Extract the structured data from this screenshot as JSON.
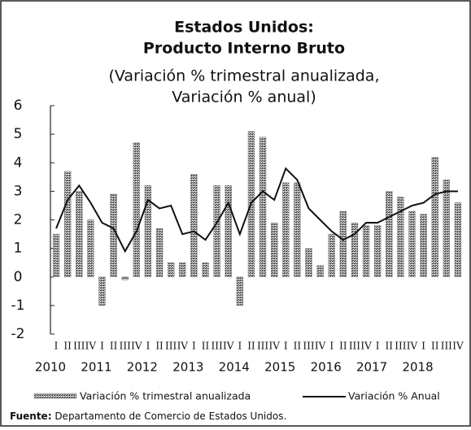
{
  "chart_data": {
    "type": "bar_line",
    "title_lines": [
      "Estados Unidos:",
      "Producto Interno Bruto",
      "(Variación % trimestral anualizada,",
      "Variación % anual)"
    ],
    "categories": [
      "I",
      "II",
      "III",
      "IV",
      "I",
      "II",
      "III",
      "IV",
      "I",
      "II",
      "III",
      "IV",
      "I",
      "II",
      "III",
      "IV",
      "I",
      "II",
      "III",
      "IV",
      "I",
      "II",
      "III",
      "IV",
      "I",
      "II",
      "III",
      "IV",
      "I",
      "II",
      "III",
      "IV",
      "I",
      "II",
      "III",
      "IV"
    ],
    "year_labels": [
      "2010",
      "2011",
      "2012",
      "2013",
      "2014",
      "2015",
      "2016",
      "2017",
      "2018"
    ],
    "series": [
      {
        "name": "Variación % trimestral anualizada",
        "type": "bar",
        "color": "#6b6b6b",
        "values": [
          1.5,
          3.7,
          3.0,
          2.0,
          -1.0,
          2.9,
          -0.1,
          4.7,
          3.2,
          1.7,
          0.5,
          0.5,
          3.6,
          0.5,
          3.2,
          3.2,
          -1.0,
          5.1,
          4.9,
          1.9,
          3.3,
          3.3,
          1.0,
          0.4,
          1.5,
          2.3,
          1.9,
          1.8,
          1.8,
          3.0,
          2.8,
          2.3,
          2.2,
          4.2,
          3.4,
          2.6
        ]
      },
      {
        "name": "Variación % Anual",
        "type": "line",
        "color": "#111111",
        "values": [
          1.7,
          2.7,
          3.2,
          2.6,
          1.9,
          1.7,
          0.9,
          1.6,
          2.7,
          2.4,
          2.5,
          1.5,
          1.6,
          1.3,
          1.9,
          2.6,
          1.5,
          2.6,
          3.0,
          2.7,
          3.8,
          3.4,
          2.4,
          2.0,
          1.6,
          1.3,
          1.5,
          1.9,
          1.9,
          2.1,
          2.3,
          2.5,
          2.6,
          2.9,
          3.0,
          3.0
        ]
      }
    ],
    "ylim": [
      -2,
      6
    ],
    "yticks": [
      6,
      5,
      4,
      3,
      2,
      1,
      0,
      -1,
      -2
    ],
    "source_label": "Fuente:",
    "source_text": " Departamento de Comercio de Estados Unidos."
  }
}
